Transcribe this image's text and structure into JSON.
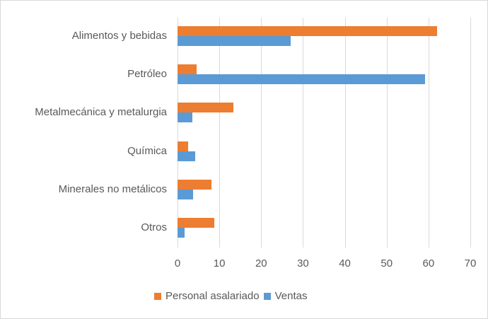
{
  "chart_data": {
    "type": "bar",
    "orientation": "horizontal",
    "title": "",
    "xlabel": "",
    "ylabel": "",
    "categories": [
      "Alimentos y bebidas",
      "Petróleo",
      "Metalmecánica y metalurgia",
      "Química",
      "Minerales no metálicos",
      "Otros"
    ],
    "series": [
      {
        "name": "Personal asalariado",
        "color": "#ED7D31",
        "values": [
          62.1,
          4.6,
          13.4,
          2.5,
          8.2,
          8.8
        ]
      },
      {
        "name": "Ventas",
        "color": "#5B9BD5",
        "values": [
          27.0,
          59.2,
          3.6,
          4.2,
          3.8,
          1.7
        ]
      }
    ],
    "xlim": [
      0,
      70
    ],
    "xticks": [
      0,
      10,
      20,
      30,
      40,
      50,
      60,
      70
    ],
    "grid": "vertical",
    "legend_position": "bottom"
  },
  "ticks": [
    "0",
    "10",
    "20",
    "30",
    "40",
    "50",
    "60",
    "70"
  ],
  "legend": {
    "items": [
      {
        "label": "Personal asalariado",
        "color": "#ED7D31"
      },
      {
        "label": "Ventas",
        "color": "#5B9BD5"
      }
    ]
  }
}
